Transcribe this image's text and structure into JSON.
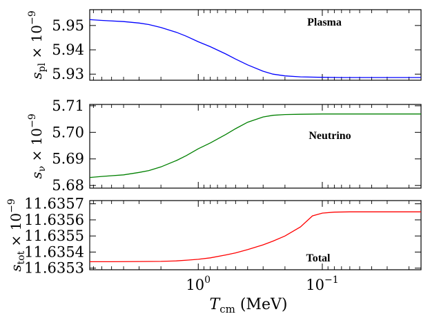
{
  "chart_data": [
    {
      "type": "line",
      "annotation": "Plasma",
      "ylabel": "s_pl × 10^-9",
      "ylabel_parts": {
        "sym": "s",
        "sub": "pl",
        "mid": " × 10",
        "sup": "−9"
      },
      "ylim": [
        5.9275,
        5.9565
      ],
      "yticks": [
        5.93,
        5.94,
        5.95
      ],
      "ytick_labels": [
        "5.93",
        "5.94",
        "5.95"
      ],
      "color": "#0000ff",
      "levels": {
        "high_T": 5.9525,
        "low_T": 5.9286
      },
      "x": [
        8,
        6,
        4,
        3,
        2.5,
        2,
        1.5,
        1.25,
        1,
        0.8,
        0.6,
        0.5,
        0.4,
        0.3,
        0.25,
        0.2,
        0.15,
        0.1,
        0.07,
        0.05,
        0.03,
        0.016
      ],
      "y": [
        5.9524,
        5.9521,
        5.9516,
        5.951,
        5.9504,
        5.9492,
        5.9472,
        5.9456,
        5.9433,
        5.9413,
        5.9383,
        5.9362,
        5.9338,
        5.9312,
        5.93,
        5.9293,
        5.9289,
        5.9287,
        5.9286,
        5.9286,
        5.9286,
        5.9286
      ]
    },
    {
      "type": "line",
      "annotation": "Neutrino",
      "ylabel": "s_ν × 10^-9",
      "ylabel_parts": {
        "sym": "s",
        "sub": "ν",
        "mid": " × 10",
        "sup": "−9"
      },
      "ylim": [
        5.679,
        5.7105
      ],
      "yticks": [
        5.68,
        5.69,
        5.7,
        5.71
      ],
      "ytick_labels": [
        "5.68",
        "5.69",
        "5.70",
        "5.71"
      ],
      "color": "#008000",
      "levels": {
        "high_T": 5.6829,
        "low_T": 5.7069
      },
      "x": [
        8,
        6,
        4,
        3,
        2.5,
        2,
        1.5,
        1.25,
        1,
        0.8,
        0.6,
        0.5,
        0.4,
        0.3,
        0.25,
        0.2,
        0.15,
        0.1,
        0.07,
        0.05,
        0.03,
        0.016
      ],
      "y": [
        5.683,
        5.6834,
        5.684,
        5.6849,
        5.6856,
        5.687,
        5.6894,
        5.6912,
        5.6938,
        5.696,
        5.6992,
        5.7014,
        5.7038,
        5.7058,
        5.7064,
        5.7067,
        5.7068,
        5.7069,
        5.7069,
        5.7069,
        5.7069,
        5.7069
      ]
    },
    {
      "type": "line",
      "annotation": "Total",
      "ylabel": "s_tot × 10^-9",
      "ylabel_parts": {
        "sym": "s",
        "sub": "tot",
        "mid": " × 10",
        "sup": "−9"
      },
      "ylim": [
        11.63529,
        11.63572
      ],
      "yticks": [
        11.6353,
        11.6354,
        11.6355,
        11.6356,
        11.6357
      ],
      "ytick_labels": [
        "11.6353",
        "11.6354",
        "11.6355",
        "11.6356",
        "11.6357"
      ],
      "color": "#ff0000",
      "levels": {
        "high_T": 11.63534,
        "low_T": 11.63565
      },
      "x": [
        8,
        5,
        3,
        2,
        1.5,
        1.2,
        1,
        0.8,
        0.6,
        0.5,
        0.4,
        0.3,
        0.25,
        0.2,
        0.15,
        0.12,
        0.1,
        0.08,
        0.06,
        0.045,
        0.03,
        0.016
      ],
      "y": [
        11.63534,
        11.63534,
        11.635341,
        11.635342,
        11.635345,
        11.63535,
        11.635355,
        11.635364,
        11.635382,
        11.635395,
        11.635415,
        11.635445,
        11.635468,
        11.6355,
        11.635556,
        11.635625,
        11.635642,
        11.635648,
        11.63565,
        11.63565,
        11.63565,
        11.63565
      ]
    }
  ],
  "xaxis": {
    "scale": "log",
    "inverted": true,
    "xlim": [
      7.5,
      0.016
    ],
    "major_ticks": [
      1,
      0.1
    ],
    "tick_labels": {
      "base": "10",
      "exp1": "0",
      "exp2": "−1"
    },
    "xlabel_sym": "T",
    "xlabel_sub": "cm",
    "xlabel_unit": "(MeV)"
  }
}
